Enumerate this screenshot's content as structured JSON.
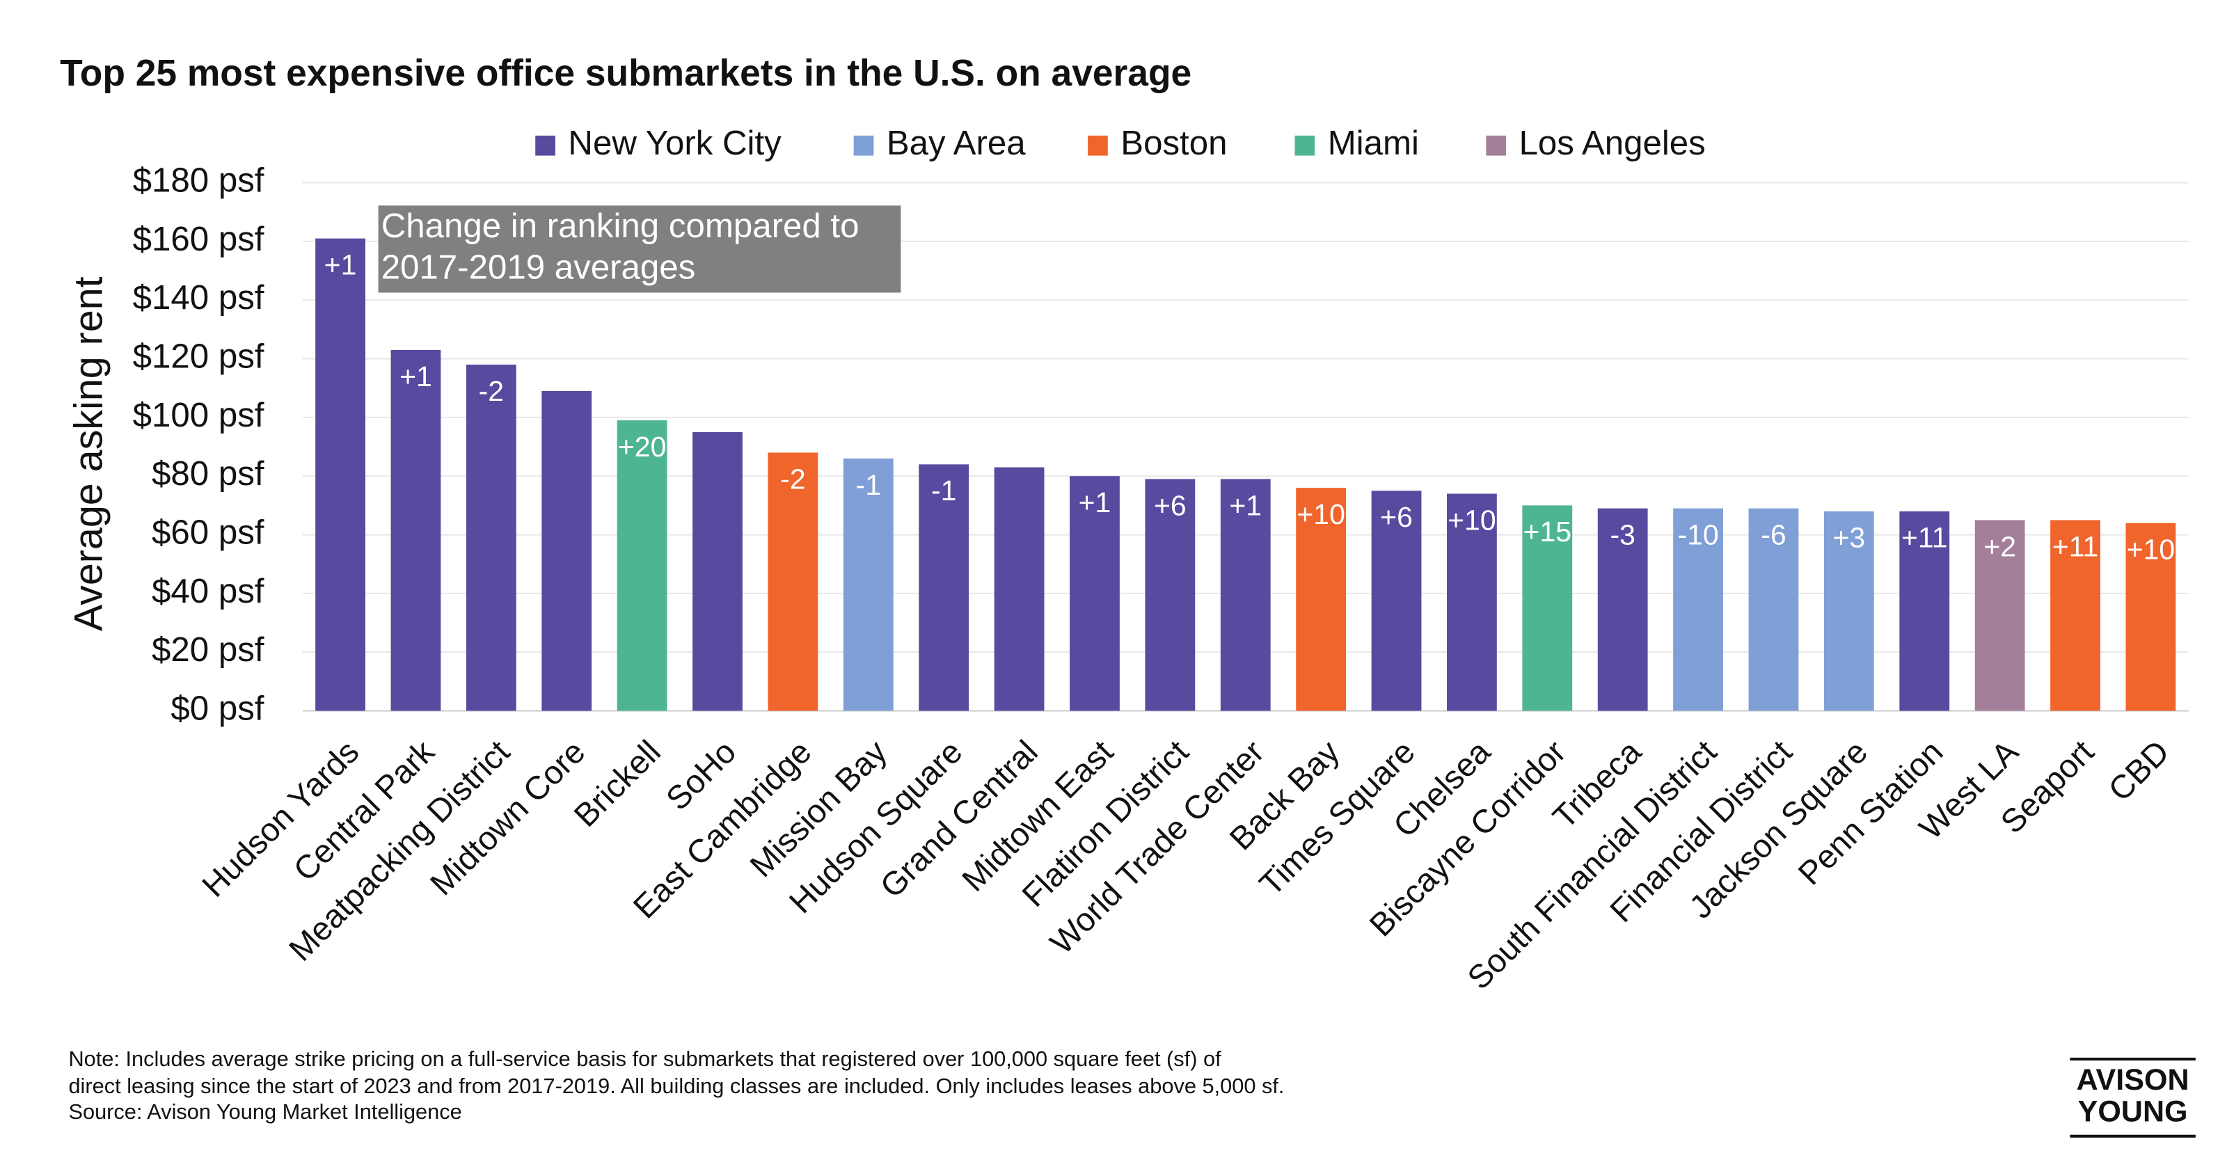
{
  "chart_data": {
    "type": "bar",
    "title": "Top 25 most expensive office submarkets in the U.S. on average",
    "ylabel": "Average asking rent",
    "annotation": [
      "Change in ranking compared to",
      "2017-2019 averages"
    ],
    "categories": [
      "Hudson Yards",
      "Central Park",
      "Meatpacking District",
      "Midtown Core",
      "Brickell",
      "SoHo",
      "East Cambridge",
      "Mission Bay",
      "Hudson Square",
      "Grand Central",
      "Midtown East",
      "Flatiron District",
      "World Trade Center",
      "Back Bay",
      "Times Square",
      "Chelsea",
      "Biscayne Corridor",
      "Tribeca",
      "South Financial District",
      "Financial District",
      "Jackson Square",
      "Penn Station",
      "West LA",
      "Seaport",
      "CBD"
    ],
    "series": [
      {
        "name": "New York City",
        "color": "#574ba0",
        "values": [
          161,
          123,
          118,
          109,
          null,
          95,
          null,
          null,
          84,
          83,
          80,
          79,
          79,
          null,
          75,
          74,
          null,
          69,
          null,
          null,
          null,
          68,
          null,
          null,
          null
        ]
      },
      {
        "name": "Bay Area",
        "color": "#7f9fd6",
        "values": [
          null,
          null,
          null,
          null,
          null,
          null,
          null,
          86,
          null,
          null,
          null,
          null,
          null,
          null,
          null,
          null,
          null,
          null,
          69,
          69,
          68,
          null,
          null,
          null,
          null
        ]
      },
      {
        "name": "Boston",
        "color": "#f0652c",
        "values": [
          null,
          null,
          null,
          null,
          null,
          null,
          88,
          null,
          null,
          null,
          null,
          null,
          null,
          76,
          null,
          null,
          null,
          null,
          null,
          null,
          null,
          null,
          null,
          65,
          64
        ]
      },
      {
        "name": "Miami",
        "color": "#4db594",
        "values": [
          null,
          null,
          null,
          null,
          99,
          null,
          null,
          null,
          null,
          null,
          null,
          null,
          null,
          null,
          null,
          null,
          70,
          null,
          null,
          null,
          null,
          null,
          null,
          null,
          null
        ]
      },
      {
        "name": "Los Angeles",
        "color": "#a47f99",
        "values": [
          null,
          null,
          null,
          null,
          null,
          null,
          null,
          null,
          null,
          null,
          null,
          null,
          null,
          null,
          null,
          null,
          null,
          null,
          null,
          null,
          null,
          null,
          65,
          null,
          null
        ]
      }
    ],
    "rank_changes": [
      "+1",
      "+1",
      "-2",
      null,
      "+20",
      null,
      "-2",
      "-1",
      "-1",
      null,
      "+1",
      "+6",
      "+1",
      "+10",
      "+6",
      "+10",
      "+15",
      "-3",
      "-10",
      "-6",
      "+3",
      "+11",
      "+2",
      "+11",
      "+10"
    ],
    "ylim": [
      0,
      180
    ],
    "yticks": [
      {
        "value": 0,
        "label": "$0 psf"
      },
      {
        "value": 20,
        "label": "$20 psf"
      },
      {
        "value": 40,
        "label": "$40 psf"
      },
      {
        "value": 60,
        "label": "$60 psf"
      },
      {
        "value": 80,
        "label": "$80 psf"
      },
      {
        "value": 100,
        "label": "$100 psf"
      },
      {
        "value": 120,
        "label": "$120 psf"
      },
      {
        "value": 140,
        "label": "$140 psf"
      },
      {
        "value": 160,
        "label": "$160 psf"
      },
      {
        "value": 180,
        "label": "$180 psf"
      }
    ],
    "grid": true,
    "legend": "top"
  },
  "footer": {
    "note": [
      "Note: Includes average strike pricing on a full-service basis for submarkets that registered over 100,000 square feet (sf) of",
      "direct leasing since the start of 2023 and from 2017-2019. All building classes are included. Only includes leases above 5,000 sf.",
      "Source: Avison Young Market Intelligence"
    ],
    "logo": [
      "AVISON",
      "YOUNG"
    ]
  }
}
